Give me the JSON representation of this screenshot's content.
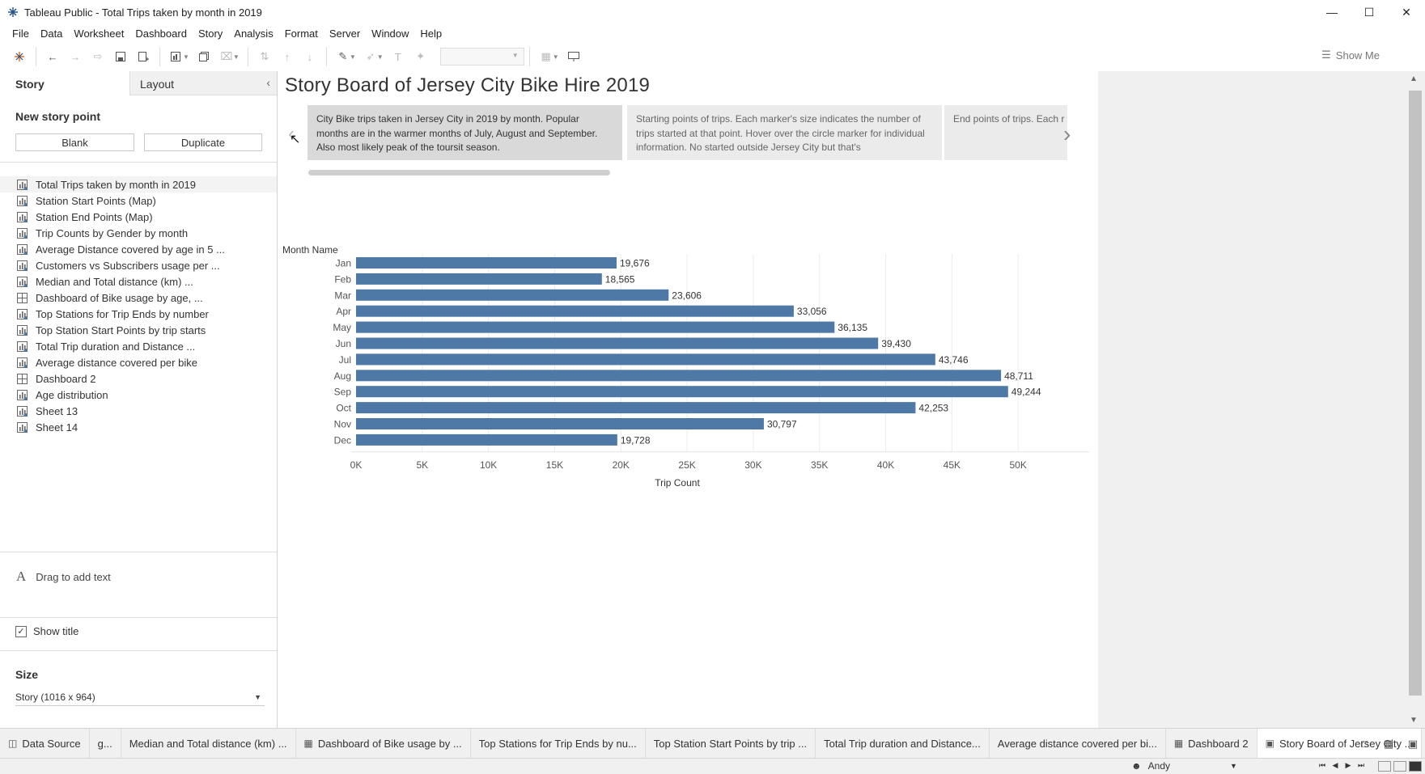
{
  "window": {
    "title": "Tableau Public - Total Trips taken by month in 2019",
    "controls": [
      "minimize",
      "maximize",
      "close"
    ]
  },
  "menu": [
    "File",
    "Data",
    "Worksheet",
    "Dashboard",
    "Story",
    "Analysis",
    "Format",
    "Server",
    "Window",
    "Help"
  ],
  "toolbar": {
    "show_me": "Show Me"
  },
  "left_panel": {
    "tab_story": "Story",
    "tab_layout": "Layout",
    "new_story_point": "New story point",
    "blank_button": "Blank",
    "duplicate_button": "Duplicate",
    "sheets": [
      {
        "label": "Total Trips taken by month in 2019",
        "type": "worksheet"
      },
      {
        "label": "Station Start Points (Map)",
        "type": "worksheet"
      },
      {
        "label": "Station End Points (Map)",
        "type": "worksheet"
      },
      {
        "label": "Trip Counts by Gender by month",
        "type": "worksheet"
      },
      {
        "label": "Average Distance covered by age in 5 ...",
        "type": "worksheet"
      },
      {
        "label": "Customers vs Subscribers usage per ...",
        "type": "worksheet"
      },
      {
        "label": "Median and Total distance (km) ...",
        "type": "worksheet"
      },
      {
        "label": "Dashboard of  Bike usage by age, ...",
        "type": "dashboard"
      },
      {
        "label": "Top Stations for Trip Ends by number",
        "type": "worksheet"
      },
      {
        "label": "Top Station Start Points by trip starts",
        "type": "worksheet"
      },
      {
        "label": "Total Trip duration and Distance ...",
        "type": "worksheet"
      },
      {
        "label": "Average distance covered per bike",
        "type": "worksheet"
      },
      {
        "label": "Dashboard 2",
        "type": "dashboard"
      },
      {
        "label": "Age distribution",
        "type": "worksheet"
      },
      {
        "label": "Sheet 13",
        "type": "worksheet"
      },
      {
        "label": "Sheet 14",
        "type": "worksheet"
      }
    ],
    "drag_text": "Drag to add text",
    "drag_text_glyph": "A",
    "show_title": "Show title",
    "size_label": "Size",
    "size_value": "Story (1016 x 964)"
  },
  "story": {
    "title": "Story Board of Jersey City Bike Hire 2019",
    "captions": [
      "City Bike trips taken in Jersey City in 2019 by month. Popular months are in the warmer months of July, August and September. Also most likely peak of the toursit season.",
      "Starting points of trips. Each marker's size indicates the number of trips started at that point. Hover over the circle marker for individual information. No started outside Jersey City but that's",
      "End points of trips. Each r trips started at that point individual information. In"
    ]
  },
  "chart_data": {
    "type": "bar",
    "orientation": "horizontal",
    "row_header": "Month Name",
    "xlabel": "Trip Count",
    "categories": [
      "Jan",
      "Feb",
      "Mar",
      "Apr",
      "May",
      "Jun",
      "Jul",
      "Aug",
      "Sep",
      "Oct",
      "Nov",
      "Dec"
    ],
    "values": [
      19676,
      18565,
      23606,
      33056,
      36135,
      39430,
      43746,
      48711,
      49244,
      42253,
      30797,
      19728
    ],
    "value_labels": [
      "19,676",
      "18,565",
      "23,606",
      "33,056",
      "36,135",
      "39,430",
      "43,746",
      "48,711",
      "49,244",
      "42,253",
      "30,797",
      "19,728"
    ],
    "xticks": [
      "0K",
      "5K",
      "10K",
      "15K",
      "20K",
      "25K",
      "30K",
      "35K",
      "40K",
      "45K",
      "50K"
    ],
    "xlim": [
      0,
      55000
    ],
    "grid": true,
    "bar_color": "#4e79a7"
  },
  "bottom_tabs": [
    {
      "label": "Data Source",
      "icon": "database-icon"
    },
    {
      "label": "g...",
      "icon": ""
    },
    {
      "label": "Median and Total distance (km) ...",
      "icon": ""
    },
    {
      "label": "Dashboard of  Bike usage by ...",
      "icon": "dashboard-icon"
    },
    {
      "label": "Top Stations for Trip Ends by nu...",
      "icon": ""
    },
    {
      "label": "Top Station Start Points by trip ...",
      "icon": ""
    },
    {
      "label": "Total Trip duration and Distance...",
      "icon": ""
    },
    {
      "label": "Average distance covered per bi...",
      "icon": ""
    },
    {
      "label": "Dashboard 2",
      "icon": "dashboard-icon"
    },
    {
      "label": "Story Board of Jersey City ...",
      "icon": "story-icon",
      "active": true
    }
  ],
  "status": {
    "user": "Andy"
  }
}
